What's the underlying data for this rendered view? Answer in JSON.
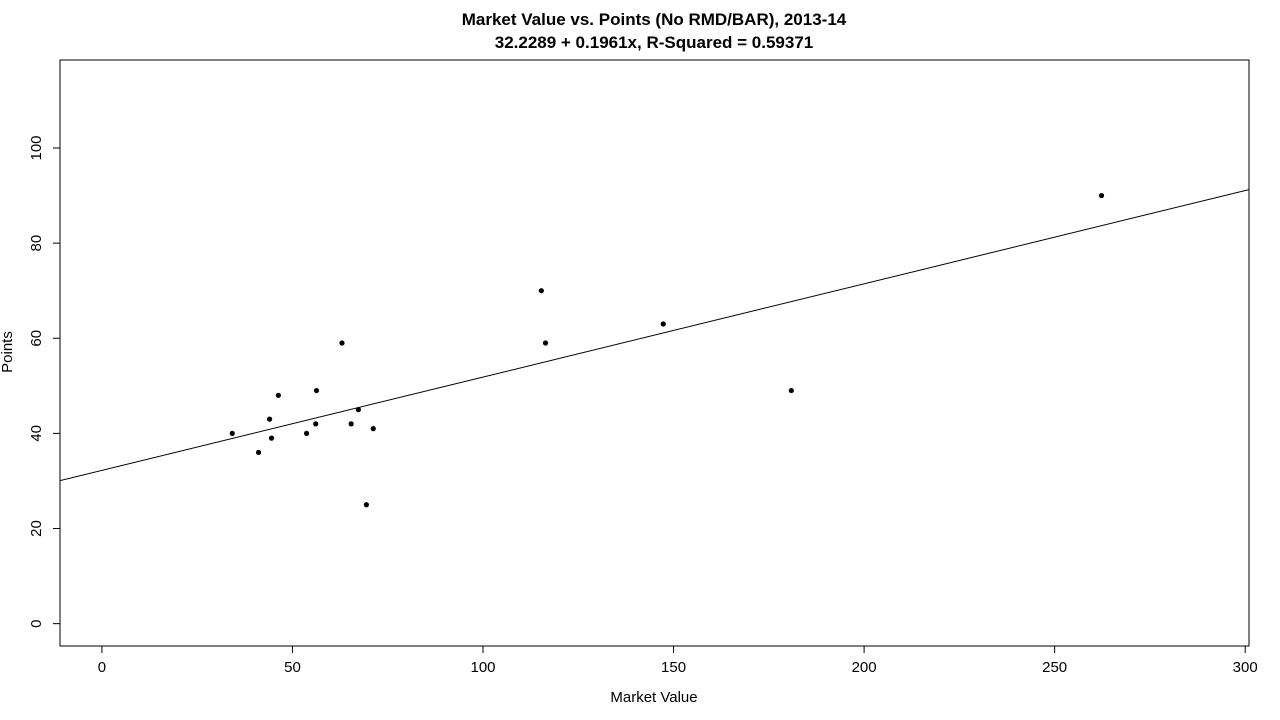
{
  "chart_data": {
    "type": "scatter",
    "title": "Market Value vs. Points (No RMD/BAR), 2013-14",
    "subtitle": "32.2289 + 0.1961x, R-Squared = 0.59371",
    "xlabel": "Market Value",
    "ylabel": "Points",
    "xlim": [
      -11,
      301
    ],
    "ylim": [
      -4.7,
      118.5
    ],
    "xticks": [
      0,
      50,
      100,
      150,
      200,
      250,
      300
    ],
    "yticks": [
      0,
      20,
      40,
      60,
      80,
      100
    ],
    "grid": false,
    "legend": "none",
    "points": [
      {
        "x": 34.2,
        "y": 40
      },
      {
        "x": 41.1,
        "y": 36
      },
      {
        "x": 44.0,
        "y": 43
      },
      {
        "x": 44.5,
        "y": 39
      },
      {
        "x": 46.3,
        "y": 48
      },
      {
        "x": 53.7,
        "y": 40
      },
      {
        "x": 56.1,
        "y": 42
      },
      {
        "x": 56.3,
        "y": 49
      },
      {
        "x": 63.0,
        "y": 59
      },
      {
        "x": 65.4,
        "y": 42
      },
      {
        "x": 67.3,
        "y": 45
      },
      {
        "x": 69.4,
        "y": 25
      },
      {
        "x": 71.2,
        "y": 41
      },
      {
        "x": 115.3,
        "y": 70
      },
      {
        "x": 116.4,
        "y": 59
      },
      {
        "x": 147.3,
        "y": 63
      },
      {
        "x": 180.9,
        "y": 49
      },
      {
        "x": 262.3,
        "y": 90
      }
    ],
    "regression": {
      "intercept": 32.2289,
      "slope": 0.1961
    }
  }
}
